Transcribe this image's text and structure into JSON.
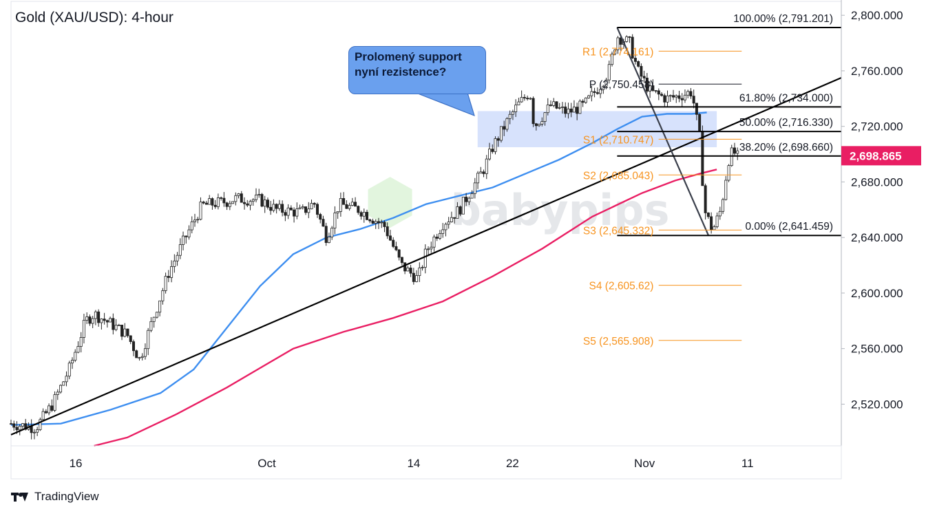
{
  "header": {
    "title": "Gold (XAU/USD): 4-hour"
  },
  "callout": {
    "line1": "Prolomený support",
    "line2": "nyní rezistence?"
  },
  "watermark": {
    "text": "babypips"
  },
  "footer": {
    "brand": "TradingView"
  },
  "price_badge": {
    "value": "2,698.865",
    "color": "#e91e63"
  },
  "colors": {
    "candle": "#222222",
    "ma_fast": "#3d8ef0",
    "ma_slow": "#e91e63",
    "pivot_levels": "#f7931e",
    "fib_lines": "#000000",
    "zone": "#c9d8fb"
  },
  "chart_data": {
    "type": "candlestick",
    "title": "Gold (XAU/USD): 4-hour",
    "y_axis": {
      "side": "right",
      "range": [
        2490,
        2810
      ],
      "ticks": [
        {
          "value": 2800,
          "label": "2,800.000"
        },
        {
          "value": 2760,
          "label": "2,760.000"
        },
        {
          "value": 2720,
          "label": "2,720.000"
        },
        {
          "value": 2680,
          "label": "2,680.000"
        },
        {
          "value": 2640,
          "label": "2,640.000"
        },
        {
          "value": 2600,
          "label": "2,600.000"
        },
        {
          "value": 2560,
          "label": "2,560.000"
        },
        {
          "value": 2520,
          "label": "2,520.000"
        }
      ]
    },
    "x_axis": {
      "ticks": [
        {
          "pos": 0.078,
          "label": "16"
        },
        {
          "pos": 0.308,
          "label": "Oct"
        },
        {
          "pos": 0.485,
          "label": "14"
        },
        {
          "pos": 0.604,
          "label": "22"
        },
        {
          "pos": 0.763,
          "label": "Nov"
        },
        {
          "pos": 0.887,
          "label": "11"
        }
      ]
    },
    "current_price": 2698.865,
    "pivot_points": [
      {
        "label": "R1 (2,774.161)",
        "value": 2774.161
      },
      {
        "label": "P (2,750.458)",
        "value": 2750.458
      },
      {
        "label": "S1 (2,710.747)",
        "value": 2710.747
      },
      {
        "label": "S2 (2,685.043)",
        "value": 2685.043
      },
      {
        "label": "S3 (2,645.332)",
        "value": 2645.332
      },
      {
        "label": "S4 (2,605.62)",
        "value": 2605.62
      },
      {
        "label": "S5 (2,565.908)",
        "value": 2565.908
      }
    ],
    "fibonacci": [
      {
        "label": "100.00% (2,791.201)",
        "value": 2791.201
      },
      {
        "label": "61.80% (2,734.000)",
        "value": 2734.0
      },
      {
        "label": "50.00% (2,716.330)",
        "value": 2716.33
      },
      {
        "label": "38.20% (2,698.660)",
        "value": 2698.66
      },
      {
        "label": "0.00% (2,641.459)",
        "value": 2641.459
      }
    ],
    "resistance_zone": {
      "from": 2705,
      "to": 2731
    },
    "trendline": {
      "from": {
        "pos": 0.0,
        "value": 2498
      },
      "to": {
        "pos": 1.0,
        "value": 2755
      }
    },
    "moving_averages": [
      {
        "color": "#3d8ef0",
        "points": [
          [
            0.0,
            2505
          ],
          [
            0.06,
            2506
          ],
          [
            0.12,
            2516
          ],
          [
            0.18,
            2528
          ],
          [
            0.22,
            2545
          ],
          [
            0.26,
            2575
          ],
          [
            0.3,
            2605
          ],
          [
            0.34,
            2628
          ],
          [
            0.38,
            2640
          ],
          [
            0.42,
            2646
          ],
          [
            0.46,
            2654
          ],
          [
            0.5,
            2664
          ],
          [
            0.54,
            2670
          ],
          [
            0.58,
            2676
          ],
          [
            0.62,
            2686
          ],
          [
            0.66,
            2696
          ],
          [
            0.7,
            2708
          ],
          [
            0.73,
            2718
          ],
          [
            0.76,
            2727
          ],
          [
            0.79,
            2729
          ],
          [
            0.82,
            2729
          ],
          [
            0.838,
            2730
          ]
        ]
      },
      {
        "color": "#e91e63",
        "points": [
          [
            0.1,
            2490
          ],
          [
            0.14,
            2496
          ],
          [
            0.2,
            2513
          ],
          [
            0.26,
            2532
          ],
          [
            0.3,
            2546
          ],
          [
            0.34,
            2560
          ],
          [
            0.4,
            2572
          ],
          [
            0.46,
            2582
          ],
          [
            0.52,
            2594
          ],
          [
            0.58,
            2612
          ],
          [
            0.64,
            2632
          ],
          [
            0.7,
            2655
          ],
          [
            0.76,
            2672
          ],
          [
            0.8,
            2681
          ],
          [
            0.83,
            2686
          ],
          [
            0.85,
            2689
          ]
        ]
      }
    ],
    "price_path": [
      [
        0.0,
        2506
      ],
      [
        0.03,
        2503
      ],
      [
        0.05,
        2520
      ],
      [
        0.07,
        2545
      ],
      [
        0.09,
        2580
      ],
      [
        0.1,
        2585
      ],
      [
        0.12,
        2578
      ],
      [
        0.14,
        2570
      ],
      [
        0.155,
        2552
      ],
      [
        0.17,
        2580
      ],
      [
        0.19,
        2615
      ],
      [
        0.21,
        2640
      ],
      [
        0.23,
        2663
      ],
      [
        0.26,
        2666
      ],
      [
        0.27,
        2668
      ],
      [
        0.3,
        2667
      ],
      [
        0.32,
        2660
      ],
      [
        0.35,
        2658
      ],
      [
        0.365,
        2665
      ],
      [
        0.38,
        2640
      ],
      [
        0.395,
        2664
      ],
      [
        0.42,
        2660
      ],
      [
        0.45,
        2648
      ],
      [
        0.47,
        2620
      ],
      [
        0.49,
        2610
      ],
      [
        0.5,
        2630
      ],
      [
        0.52,
        2650
      ],
      [
        0.54,
        2660
      ],
      [
        0.55,
        2670
      ],
      [
        0.57,
        2690
      ],
      [
        0.58,
        2705
      ],
      [
        0.6,
        2726
      ],
      [
        0.61,
        2735
      ],
      [
        0.625,
        2745
      ],
      [
        0.63,
        2720
      ],
      [
        0.65,
        2735
      ],
      [
        0.67,
        2730
      ],
      [
        0.69,
        2735
      ],
      [
        0.71,
        2750
      ],
      [
        0.72,
        2760
      ],
      [
        0.73,
        2785
      ],
      [
        0.745,
        2780
      ],
      [
        0.755,
        2760
      ],
      [
        0.77,
        2745
      ],
      [
        0.79,
        2740
      ],
      [
        0.805,
        2742
      ],
      [
        0.82,
        2745
      ],
      [
        0.83,
        2710
      ],
      [
        0.835,
        2660
      ],
      [
        0.845,
        2645
      ],
      [
        0.855,
        2660
      ],
      [
        0.86,
        2680
      ],
      [
        0.865,
        2698
      ],
      [
        0.87,
        2702
      ],
      [
        0.875,
        2698
      ]
    ]
  }
}
